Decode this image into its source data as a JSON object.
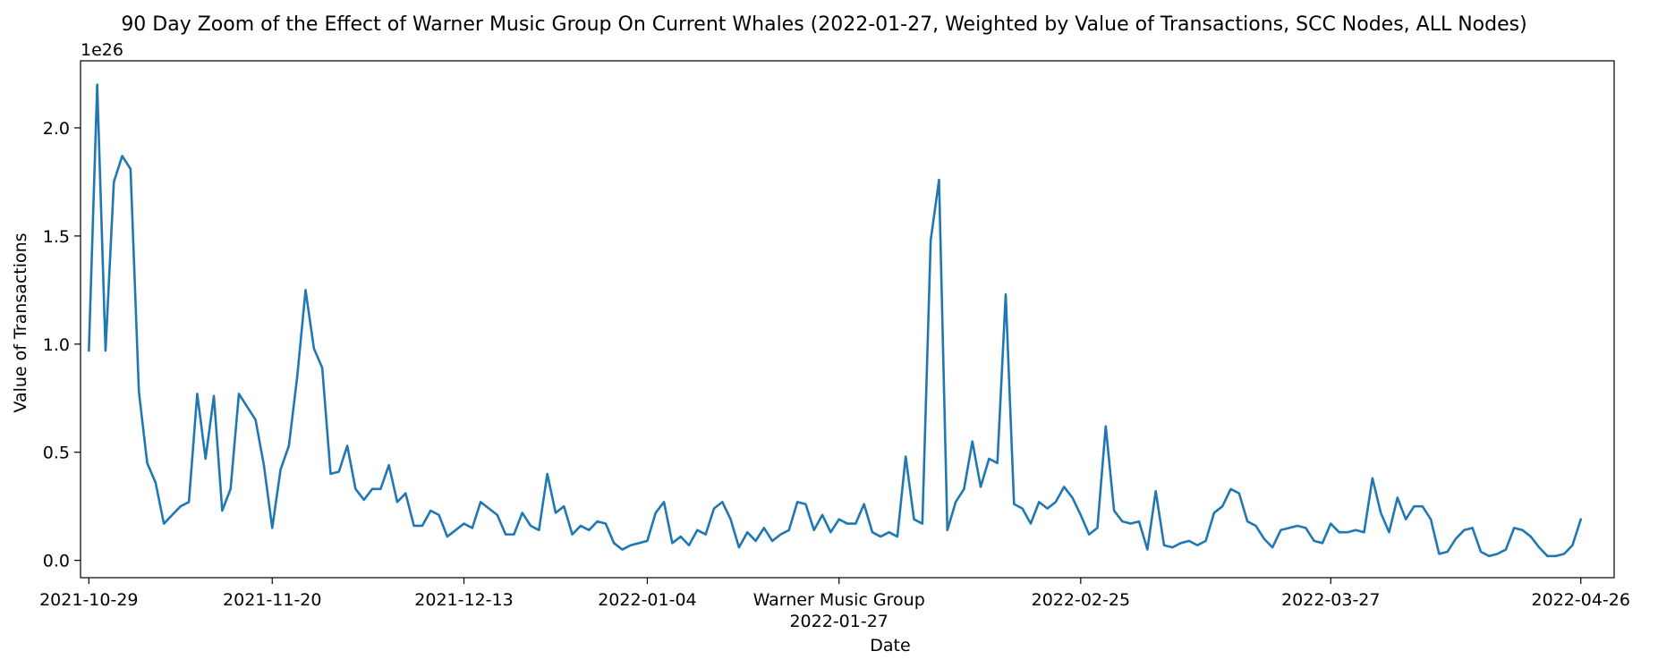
{
  "chart_data": {
    "type": "line",
    "title": "90 Day Zoom of the Effect of Warner Music Group On Current Whales (2022-01-27, Weighted by Value of Transactions, SCC Nodes, ALL Nodes)",
    "xlabel": "Date",
    "ylabel": "Value of Transactions",
    "y_multiplier_label": "1e26",
    "y_ticks": [
      0.0,
      0.5,
      1.0,
      1.5,
      2.0
    ],
    "y_tick_labels": [
      "0.0",
      "0.5",
      "1.0",
      "1.5",
      "2.0"
    ],
    "ylim": [
      -0.08,
      2.31
    ],
    "xlim": [
      "2021-10-28",
      "2022-04-30"
    ],
    "x_tick_dates": [
      "2021-10-29",
      "2021-11-20",
      "2021-12-13",
      "2022-01-04",
      "2022-01-27",
      "2022-02-25",
      "2022-03-27",
      "2022-04-26"
    ],
    "x_tick_labels": [
      "2021-10-29",
      "2021-11-20",
      "2021-12-13",
      "2022-01-04",
      "Warner Music Group\n2022-01-27",
      "2022-02-25",
      "2022-03-27",
      "2022-04-26"
    ],
    "grid": false,
    "color": "#1f77b4",
    "series": [
      {
        "x": [
          "2021-10-29",
          "2021-10-30",
          "2021-10-31",
          "2021-11-01",
          "2021-11-02",
          "2021-11-03",
          "2021-11-04",
          "2021-11-05",
          "2021-11-06",
          "2021-11-07",
          "2021-11-08",
          "2021-11-09",
          "2021-11-10",
          "2021-11-11",
          "2021-11-12",
          "2021-11-13",
          "2021-11-14",
          "2021-11-15",
          "2021-11-16",
          "2021-11-17",
          "2021-11-18",
          "2021-11-19",
          "2021-11-20",
          "2021-11-21",
          "2021-11-22",
          "2021-11-23",
          "2021-11-24",
          "2021-11-25",
          "2021-11-26",
          "2021-11-27",
          "2021-11-28",
          "2021-11-29",
          "2021-11-30",
          "2021-12-01",
          "2021-12-02",
          "2021-12-03",
          "2021-12-04",
          "2021-12-05",
          "2021-12-06",
          "2021-12-07",
          "2021-12-08",
          "2021-12-09",
          "2021-12-10",
          "2021-12-11",
          "2021-12-12",
          "2021-12-13",
          "2021-12-14",
          "2021-12-15",
          "2021-12-16",
          "2021-12-17",
          "2021-12-18",
          "2021-12-19",
          "2021-12-20",
          "2021-12-21",
          "2021-12-22",
          "2021-12-23",
          "2021-12-24",
          "2021-12-25",
          "2021-12-26",
          "2021-12-27",
          "2021-12-28",
          "2021-12-29",
          "2021-12-30",
          "2021-12-31",
          "2022-01-01",
          "2022-01-02",
          "2022-01-03",
          "2022-01-04",
          "2022-01-05",
          "2022-01-06",
          "2022-01-07",
          "2022-01-08",
          "2022-01-09",
          "2022-01-10",
          "2022-01-11",
          "2022-01-12",
          "2022-01-13",
          "2022-01-14",
          "2022-01-15",
          "2022-01-16",
          "2022-01-17",
          "2022-01-18",
          "2022-01-19",
          "2022-01-20",
          "2022-01-21",
          "2022-01-22",
          "2022-01-23",
          "2022-01-24",
          "2022-01-25",
          "2022-01-26",
          "2022-01-27",
          "2022-01-28",
          "2022-01-29",
          "2022-01-30",
          "2022-01-31",
          "2022-02-01",
          "2022-02-02",
          "2022-02-03",
          "2022-02-04",
          "2022-02-05",
          "2022-02-06",
          "2022-02-07",
          "2022-02-08",
          "2022-02-09",
          "2022-02-10",
          "2022-02-11",
          "2022-02-12",
          "2022-02-13",
          "2022-02-14",
          "2022-02-15",
          "2022-02-16",
          "2022-02-17",
          "2022-02-18",
          "2022-02-19",
          "2022-02-20",
          "2022-02-21",
          "2022-02-22",
          "2022-02-23",
          "2022-02-24",
          "2022-02-25",
          "2022-02-26",
          "2022-02-27",
          "2022-02-28",
          "2022-03-01",
          "2022-03-02",
          "2022-03-03",
          "2022-03-04",
          "2022-03-05",
          "2022-03-06",
          "2022-03-07",
          "2022-03-08",
          "2022-03-09",
          "2022-03-10",
          "2022-03-11",
          "2022-03-12",
          "2022-03-13",
          "2022-03-14",
          "2022-03-15",
          "2022-03-16",
          "2022-03-17",
          "2022-03-18",
          "2022-03-19",
          "2022-03-20",
          "2022-03-21",
          "2022-03-22",
          "2022-03-23",
          "2022-03-24",
          "2022-03-25",
          "2022-03-26",
          "2022-03-27",
          "2022-03-28",
          "2022-03-29",
          "2022-03-30",
          "2022-03-31",
          "2022-04-01",
          "2022-04-02",
          "2022-04-03",
          "2022-04-04",
          "2022-04-05",
          "2022-04-06",
          "2022-04-07",
          "2022-04-08",
          "2022-04-09",
          "2022-04-10",
          "2022-04-11",
          "2022-04-12",
          "2022-04-13",
          "2022-04-14",
          "2022-04-15",
          "2022-04-16",
          "2022-04-17",
          "2022-04-18",
          "2022-04-19",
          "2022-04-20",
          "2022-04-21",
          "2022-04-22",
          "2022-04-23",
          "2022-04-24",
          "2022-04-25",
          "2022-04-26"
        ],
        "y": [
          0.97,
          2.2,
          0.97,
          1.75,
          1.87,
          1.81,
          0.78,
          0.45,
          0.36,
          0.17,
          0.21,
          0.25,
          0.27,
          0.77,
          0.47,
          0.76,
          0.23,
          0.33,
          0.77,
          0.71,
          0.65,
          0.44,
          0.15,
          0.42,
          0.53,
          0.85,
          1.25,
          0.98,
          0.89,
          0.4,
          0.41,
          0.53,
          0.33,
          0.28,
          0.33,
          0.33,
          0.44,
          0.27,
          0.31,
          0.16,
          0.16,
          0.23,
          0.21,
          0.11,
          0.14,
          0.17,
          0.15,
          0.27,
          0.24,
          0.21,
          0.12,
          0.12,
          0.22,
          0.16,
          0.14,
          0.4,
          0.22,
          0.25,
          0.12,
          0.16,
          0.14,
          0.18,
          0.17,
          0.08,
          0.05,
          0.07,
          0.08,
          0.09,
          0.22,
          0.27,
          0.08,
          0.11,
          0.07,
          0.14,
          0.12,
          0.24,
          0.27,
          0.19,
          0.06,
          0.13,
          0.09,
          0.15,
          0.09,
          0.12,
          0.14,
          0.27,
          0.26,
          0.14,
          0.21,
          0.13,
          0.19,
          0.17,
          0.17,
          0.26,
          0.13,
          0.11,
          0.13,
          0.11,
          0.48,
          0.19,
          0.17,
          1.48,
          1.76,
          0.14,
          0.27,
          0.33,
          0.55,
          0.34,
          0.47,
          0.45,
          1.23,
          0.26,
          0.24,
          0.17,
          0.27,
          0.24,
          0.27,
          0.34,
          0.29,
          0.21,
          0.12,
          0.15,
          0.62,
          0.23,
          0.18,
          0.17,
          0.18,
          0.05,
          0.32,
          0.07,
          0.06,
          0.08,
          0.09,
          0.07,
          0.09,
          0.22,
          0.25,
          0.33,
          0.31,
          0.18,
          0.16,
          0.1,
          0.06,
          0.14,
          0.15,
          0.16,
          0.15,
          0.09,
          0.08,
          0.17,
          0.13,
          0.13,
          0.14,
          0.13,
          0.38,
          0.22,
          0.13,
          0.29,
          0.19,
          0.25,
          0.25,
          0.19,
          0.03,
          0.04,
          0.1,
          0.14,
          0.15,
          0.04,
          0.02,
          0.03,
          0.05,
          0.15,
          0.14,
          0.11,
          0.06,
          0.02,
          0.02,
          0.03,
          0.07,
          0.19
        ]
      }
    ]
  }
}
